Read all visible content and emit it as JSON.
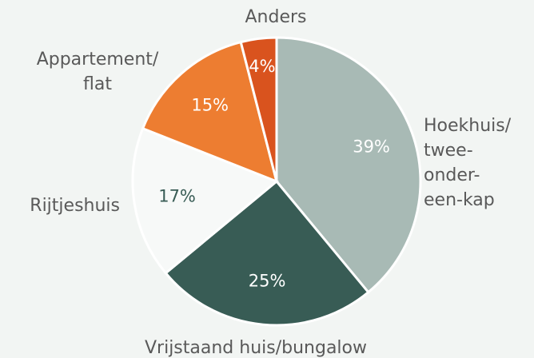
{
  "chart_data": {
    "type": "pie",
    "categories": [
      "Hoekhuis/\ntwee-\nonder-\neen-kap",
      "Vrijstaand huis/bungalow",
      "Rijtjeshuis",
      "Appartement/\nflat",
      "Anders"
    ],
    "values": [
      39,
      25,
      17,
      15,
      4
    ],
    "value_labels": [
      "39%",
      "25%",
      "17%",
      "15%",
      "4%"
    ],
    "colors": [
      "#a8bab5",
      "#385c55",
      "#f7f9f8",
      "#ed7d31",
      "#d9531e"
    ],
    "label_colors": [
      "#ffffff",
      "#ffffff",
      "#385c55",
      "#ffffff",
      "#ffffff"
    ]
  }
}
